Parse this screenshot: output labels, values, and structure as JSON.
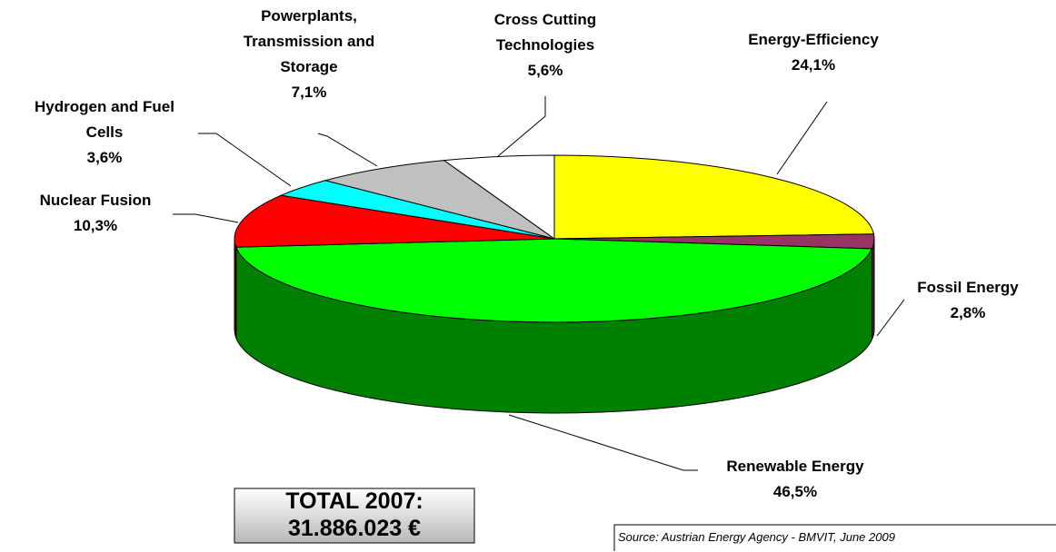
{
  "chart_data": {
    "type": "pie",
    "categories": [
      "Energy-Efficiency",
      "Fossil Energy",
      "Renewable Energy",
      "Nuclear Fusion",
      "Hydrogen and Fuel Cells",
      "Powerplants, Transmission and Storage",
      "Cross Cutting Technologies"
    ],
    "values": [
      24.1,
      2.8,
      46.5,
      10.3,
      3.6,
      7.1,
      5.6
    ],
    "value_labels": [
      "24,1%",
      "2,8%",
      "46,5%",
      "10,3%",
      "3,6%",
      "7,1%",
      "5,6%"
    ],
    "colors": [
      "#ffff00",
      "#993366",
      "#00ff00",
      "#ff0000",
      "#00ffff",
      "#c0c0c0",
      "#ffffff"
    ],
    "annotations": [
      "TOTAL 2007:",
      "31.886.023 €"
    ],
    "source": "Source: Austrian Energy Agency - BMVIT, June 2009"
  }
}
